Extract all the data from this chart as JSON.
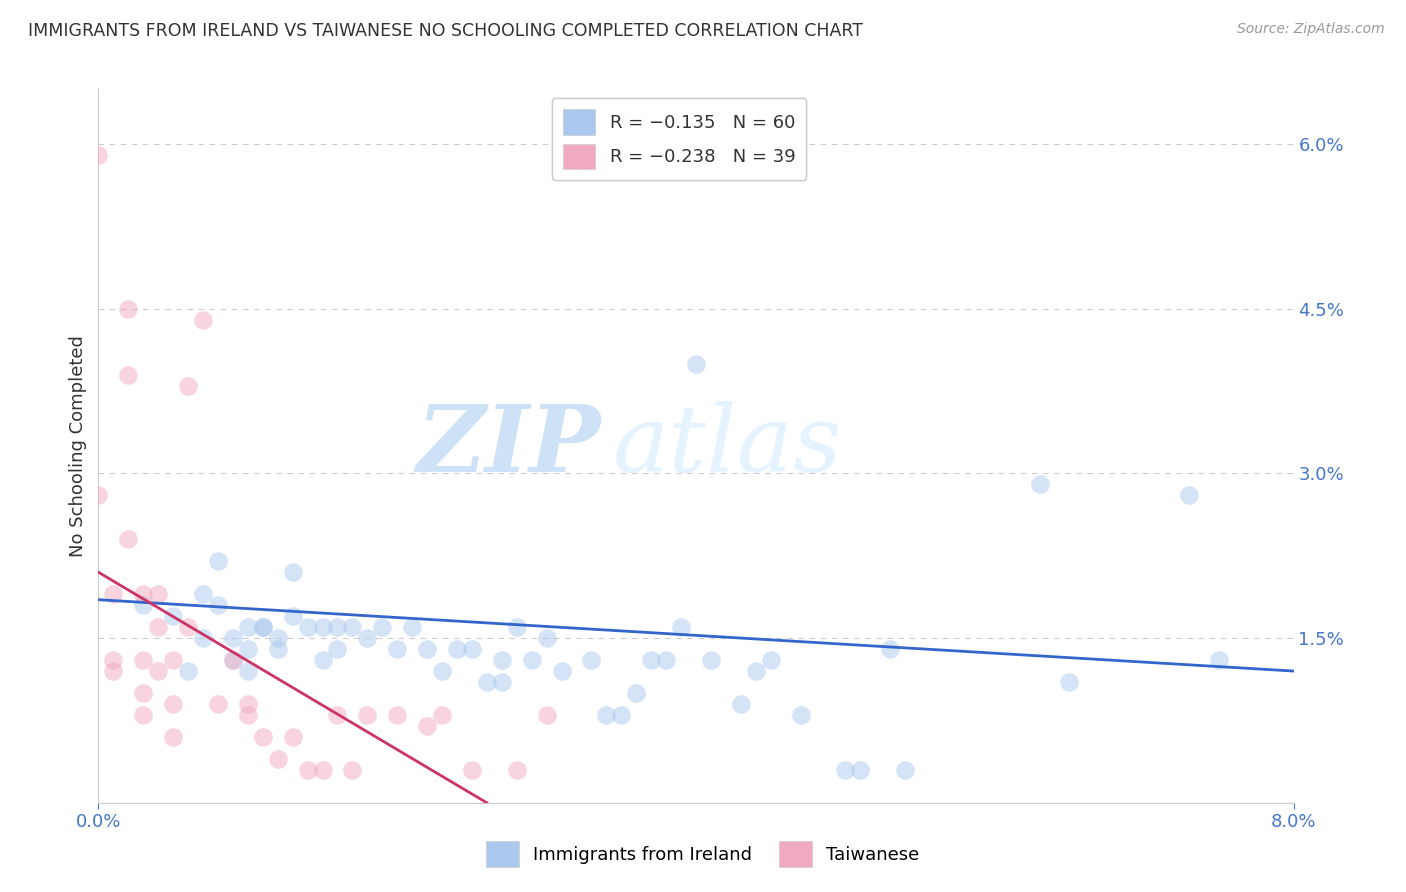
{
  "title": "IMMIGRANTS FROM IRELAND VS TAIWANESE NO SCHOOLING COMPLETED CORRELATION CHART",
  "source": "Source: ZipAtlas.com",
  "ylabel": "No Schooling Completed",
  "right_yticks": [
    0.0,
    0.015,
    0.03,
    0.045,
    0.06
  ],
  "right_yticklabels": [
    "",
    "1.5%",
    "3.0%",
    "4.5%",
    "6.0%"
  ],
  "xlim": [
    0.0,
    0.08
  ],
  "ylim": [
    0.0,
    0.065
  ],
  "legend_entries": [
    {
      "label": "R = −0.135   N = 60",
      "color": "#aac8ed"
    },
    {
      "label": "R = −0.238   N = 39",
      "color": "#f0aabf"
    }
  ],
  "ireland_color": "#aac8ed",
  "taiwan_color": "#f0aabf",
  "ireland_line_color": "#3366cc",
  "taiwan_line_color": "#cc3366",
  "ireland_scatter_x": [
    0.003,
    0.005,
    0.006,
    0.007,
    0.007,
    0.008,
    0.008,
    0.009,
    0.009,
    0.01,
    0.01,
    0.01,
    0.011,
    0.011,
    0.012,
    0.012,
    0.013,
    0.013,
    0.014,
    0.015,
    0.015,
    0.016,
    0.016,
    0.017,
    0.018,
    0.019,
    0.02,
    0.021,
    0.022,
    0.023,
    0.024,
    0.025,
    0.026,
    0.027,
    0.027,
    0.028,
    0.029,
    0.03,
    0.031,
    0.033,
    0.034,
    0.035,
    0.036,
    0.037,
    0.038,
    0.039,
    0.04,
    0.041,
    0.043,
    0.044,
    0.045,
    0.047,
    0.05,
    0.051,
    0.053,
    0.054,
    0.063,
    0.065,
    0.073,
    0.075
  ],
  "ireland_scatter_y": [
    0.018,
    0.017,
    0.012,
    0.019,
    0.015,
    0.022,
    0.018,
    0.013,
    0.015,
    0.016,
    0.014,
    0.012,
    0.016,
    0.016,
    0.015,
    0.014,
    0.017,
    0.021,
    0.016,
    0.016,
    0.013,
    0.014,
    0.016,
    0.016,
    0.015,
    0.016,
    0.014,
    0.016,
    0.014,
    0.012,
    0.014,
    0.014,
    0.011,
    0.011,
    0.013,
    0.016,
    0.013,
    0.015,
    0.012,
    0.013,
    0.008,
    0.008,
    0.01,
    0.013,
    0.013,
    0.016,
    0.04,
    0.013,
    0.009,
    0.012,
    0.013,
    0.008,
    0.003,
    0.003,
    0.014,
    0.003,
    0.029,
    0.011,
    0.028,
    0.013
  ],
  "taiwan_scatter_x": [
    0.0,
    0.0,
    0.001,
    0.001,
    0.001,
    0.002,
    0.002,
    0.002,
    0.003,
    0.003,
    0.003,
    0.003,
    0.004,
    0.004,
    0.004,
    0.005,
    0.005,
    0.005,
    0.006,
    0.006,
    0.007,
    0.008,
    0.009,
    0.01,
    0.01,
    0.011,
    0.012,
    0.013,
    0.014,
    0.015,
    0.016,
    0.017,
    0.018,
    0.02,
    0.022,
    0.023,
    0.025,
    0.028,
    0.03
  ],
  "taiwan_scatter_y": [
    0.059,
    0.028,
    0.019,
    0.013,
    0.012,
    0.045,
    0.039,
    0.024,
    0.019,
    0.013,
    0.01,
    0.008,
    0.019,
    0.016,
    0.012,
    0.013,
    0.009,
    0.006,
    0.038,
    0.016,
    0.044,
    0.009,
    0.013,
    0.009,
    0.008,
    0.006,
    0.004,
    0.006,
    0.003,
    0.003,
    0.008,
    0.003,
    0.008,
    0.008,
    0.007,
    0.008,
    0.003,
    0.003,
    0.008
  ],
  "ireland_trend_x": [
    0.0,
    0.08
  ],
  "ireland_trend_y": [
    0.0185,
    0.012
  ],
  "taiwan_trend_x": [
    0.0,
    0.026
  ],
  "taiwan_trend_y": [
    0.021,
    0.0
  ],
  "watermark_zip": "ZIP",
  "watermark_atlas": "atlas",
  "grid_color": "#cccccc",
  "background_color": "#ffffff",
  "scatter_size": 180,
  "scatter_alpha": 0.5,
  "trend_linewidth": 2.0
}
